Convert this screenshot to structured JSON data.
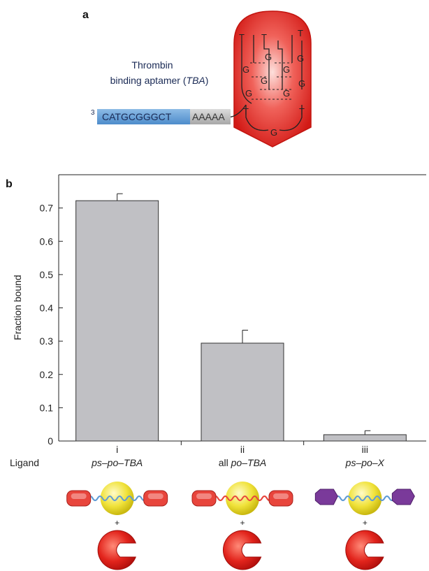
{
  "panel_a": {
    "label": "a",
    "title_line1": "Thrombin",
    "title_line2_prefix": "binding aptamer (",
    "title_line2_italic": "TBA",
    "title_line2_suffix": ")",
    "end_label": "3",
    "sequence_blue": "CATGCGGGCT",
    "sequence_grey": "AAAAA",
    "loop_letters": [
      "T",
      "T",
      "T",
      "G",
      "G",
      "G",
      "G",
      "G",
      "G",
      "G",
      "G",
      "T",
      "T",
      "G"
    ],
    "colors": {
      "blue": "#5b9bd5",
      "grey": "#b5b5b5",
      "red": "#e8201f"
    }
  },
  "panel_b": {
    "label": "b",
    "ligand_label": "Ligand",
    "plus": "+",
    "ligands": [
      {
        "parts": [
          {
            "t": "ps",
            "i": true
          },
          {
            "t": "–",
            "i": false
          },
          {
            "t": "po",
            "i": true
          },
          {
            "t": "–",
            "i": false
          },
          {
            "t": "TBA",
            "i": true
          }
        ]
      },
      {
        "parts": [
          {
            "t": "all ",
            "i": false
          },
          {
            "t": "po",
            "i": true
          },
          {
            "t": "–",
            "i": false
          },
          {
            "t": "TBA",
            "i": true
          }
        ]
      },
      {
        "parts": [
          {
            "t": "ps",
            "i": true
          },
          {
            "t": "–",
            "i": false
          },
          {
            "t": "po",
            "i": true
          },
          {
            "t": "–",
            "i": false
          },
          {
            "t": "X",
            "i": true
          }
        ]
      }
    ],
    "illustration_colors": [
      {
        "end": "#e8453c",
        "core": "#f2e63a",
        "linker": "#5f9bd6"
      },
      {
        "end": "#e8453c",
        "core": "#f2e63a",
        "linker": "#e8453c"
      },
      {
        "end": "#7a3a9a",
        "core": "#f2e63a",
        "linker": "#5f9bd6"
      }
    ]
  },
  "chart_data": {
    "type": "bar",
    "categories": [
      "i",
      "ii",
      "iii"
    ],
    "values": [
      0.722,
      0.294,
      0.019
    ],
    "errors": [
      0.021,
      0.039,
      0.012
    ],
    "ylabel": "Fraction bound",
    "ylim": [
      0,
      0.8
    ],
    "yticks": [
      "0",
      "0.1",
      "0.2",
      "0.3",
      "0.4",
      "0.5",
      "0.6",
      "0.7"
    ],
    "bar_color": "#c0c0c4",
    "grid": false
  }
}
